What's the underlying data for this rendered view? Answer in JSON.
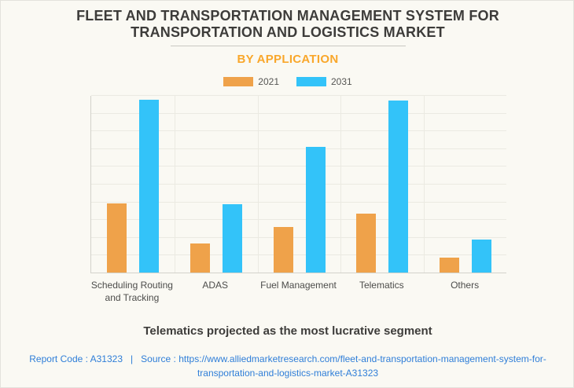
{
  "header": {
    "title": "FLEET AND TRANSPORTATION MANAGEMENT SYSTEM FOR TRANSPORTATION AND LOGISTICS MARKET",
    "subtitle": "BY APPLICATION"
  },
  "colors": {
    "series_2021": "#efa24a",
    "series_2031": "#33c3f9",
    "accent_orange": "#f9a72b",
    "link_blue": "#2f7ed8",
    "background": "#faf9f3"
  },
  "chart_data": {
    "type": "bar",
    "categories": [
      "Scheduling Routing and Tracking",
      "ADAS",
      "Fuel Management",
      "Telematics",
      "Others"
    ],
    "series": [
      {
        "name": "2021",
        "color": "#efa24a",
        "values": [
          3.9,
          1.65,
          2.55,
          3.3,
          0.85
        ]
      },
      {
        "name": "2031",
        "color": "#33c3f9",
        "values": [
          9.75,
          3.85,
          7.1,
          9.7,
          1.85
        ]
      }
    ],
    "title": "BY APPLICATION",
    "xlabel": "",
    "ylabel": "",
    "ylim": [
      0,
      10
    ],
    "ytick_step": 1,
    "ytick_labels_visible": false,
    "grid": true,
    "legend_position": "top"
  },
  "footnote": "Telematics projected as the most lucrative segment",
  "footer": {
    "report_code": "Report Code : A31323",
    "separator": "|",
    "source_prefix": "Source :",
    "source_url": "https://www.alliedmarketresearch.com/fleet-and-transportation-management-system-for-transportation-and-logistics-market-A31323"
  }
}
